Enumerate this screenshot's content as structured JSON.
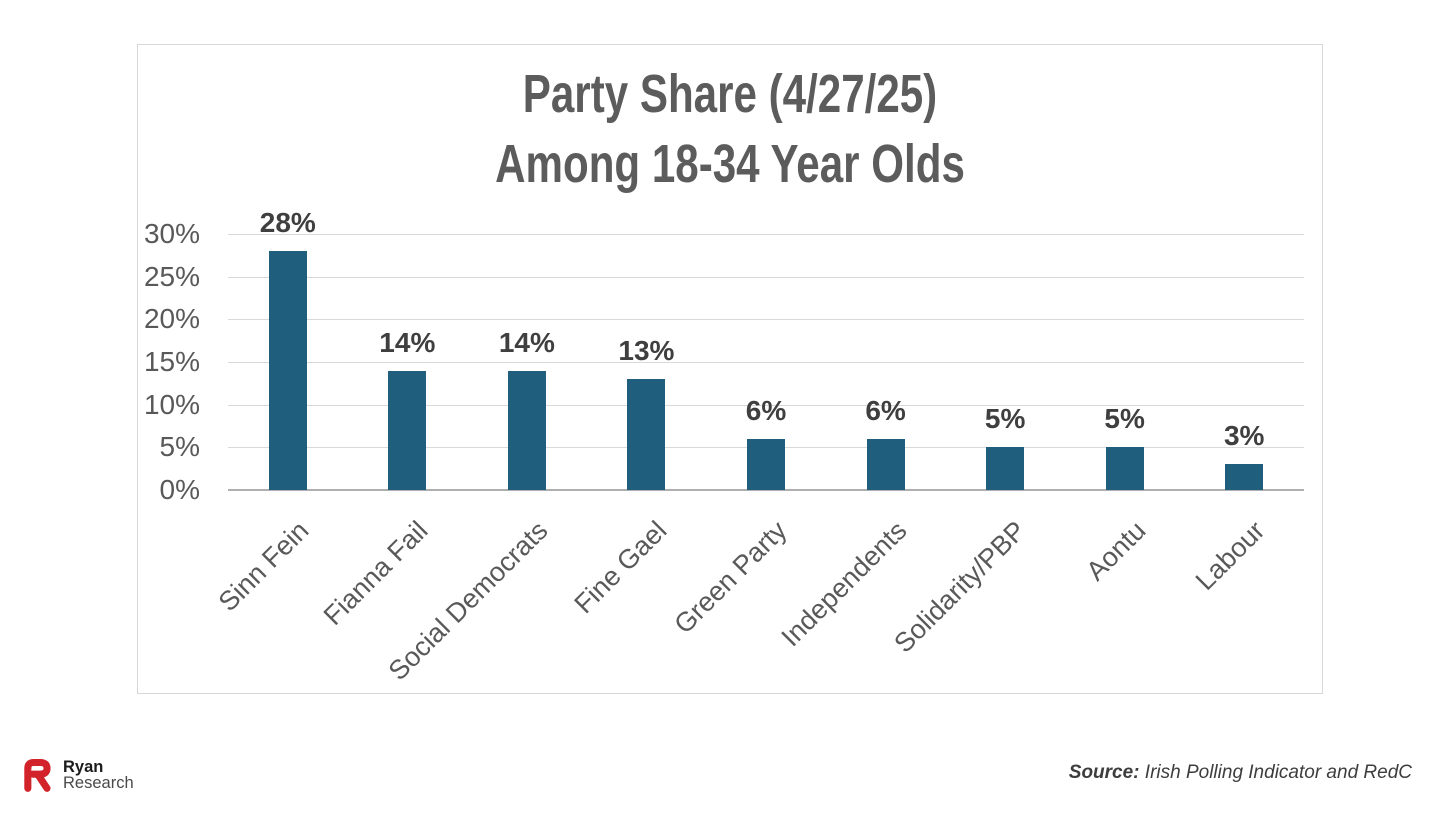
{
  "chart_data": {
    "type": "bar",
    "title": "Party Share (4/27/25) Among 18-34 Year Olds",
    "title_line1": "Party Share (4/27/25)",
    "title_line2": "Among 18-34 Year Olds",
    "categories": [
      "Sinn Fein",
      "Fianna Fail",
      "Social Democrats",
      "Fine Gael",
      "Green Party",
      "Independents",
      "Solidarity/PBP",
      "Aontu",
      "Labour"
    ],
    "values": [
      28,
      14,
      14,
      13,
      6,
      6,
      5,
      5,
      3
    ],
    "data_labels": [
      "28%",
      "14%",
      "14%",
      "13%",
      "6%",
      "6%",
      "5%",
      "5%",
      "3%"
    ],
    "yticks": [
      "0%",
      "5%",
      "10%",
      "15%",
      "20%",
      "25%",
      "30%"
    ],
    "ytick_interval": 5,
    "ylim": [
      0,
      30
    ],
    "xlabel": "",
    "ylabel": "",
    "grid": true,
    "legend": false,
    "x_label_rotation_deg": 45,
    "bar_color": "#1f5e7d",
    "gridline_color": "#d9d9d9",
    "axis_line_color": "#afafaf",
    "title_color": "#5c5c5c",
    "label_color": "#3f3f3f",
    "tick_color": "#595959"
  },
  "footer": {
    "brand_line1": "Ryan",
    "brand_line2": "Research",
    "logo_icon": "ryan-research-r-mark",
    "logo_color": "#d2232a",
    "source_label": "Source:",
    "source_text": " Irish Polling Indicator and RedC"
  }
}
